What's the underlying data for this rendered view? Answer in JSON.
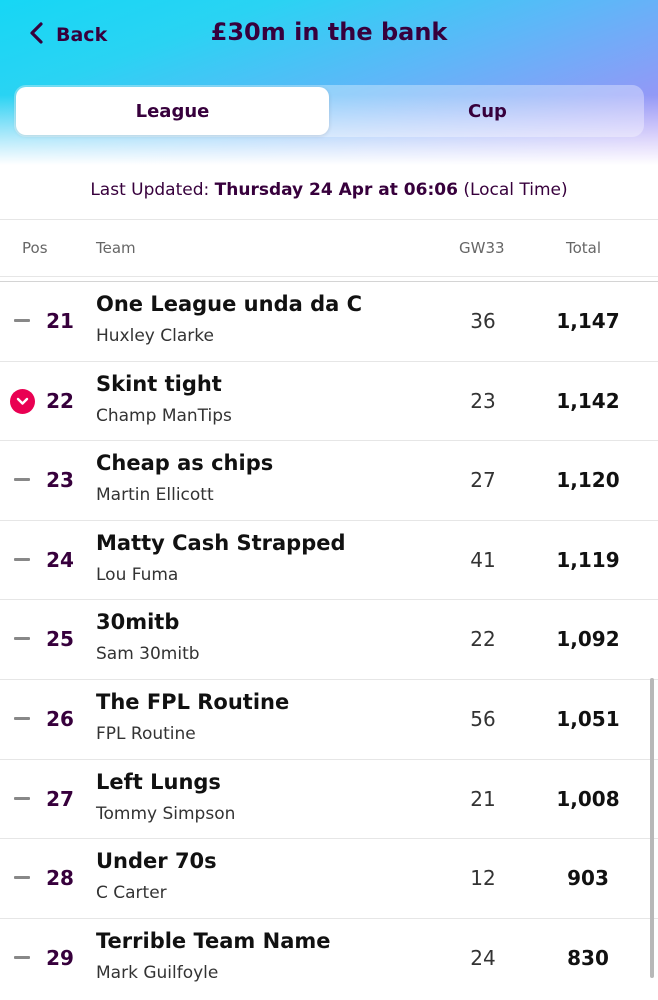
{
  "header": {
    "back_label": "Back",
    "title": "£30m in the bank"
  },
  "tabs": [
    {
      "label": "League",
      "active": true
    },
    {
      "label": "Cup",
      "active": false
    }
  ],
  "updated": {
    "prefix": "Last Updated:",
    "when": "Thursday 24 Apr at 06:06",
    "suffix": "(Local Time)"
  },
  "columns": {
    "pos": "Pos",
    "team": "Team",
    "gw": "GW33",
    "total": "Total"
  },
  "accent_color": "#e90052",
  "brand_color": "#37003c",
  "rows": [
    {
      "movement": "same",
      "pos": "21",
      "team": "One League unda da C",
      "manager": "Huxley Clarke",
      "gw": "36",
      "total": "1,147"
    },
    {
      "movement": "down",
      "pos": "22",
      "team": "Skint tight",
      "manager": "Champ ManTips",
      "gw": "23",
      "total": "1,142"
    },
    {
      "movement": "same",
      "pos": "23",
      "team": "Cheap as chips",
      "manager": "Martin Ellicott",
      "gw": "27",
      "total": "1,120"
    },
    {
      "movement": "same",
      "pos": "24",
      "team": "Matty Cash Strapped",
      "manager": "Lou Fuma",
      "gw": "41",
      "total": "1,119"
    },
    {
      "movement": "same",
      "pos": "25",
      "team": "30mitb",
      "manager": "Sam 30mitb",
      "gw": "22",
      "total": "1,092"
    },
    {
      "movement": "same",
      "pos": "26",
      "team": "The FPL Routine",
      "manager": "FPL Routine",
      "gw": "56",
      "total": "1,051"
    },
    {
      "movement": "same",
      "pos": "27",
      "team": "Left Lungs",
      "manager": "Tommy Simpson",
      "gw": "21",
      "total": "1,008"
    },
    {
      "movement": "same",
      "pos": "28",
      "team": "Under 70s",
      "manager": "C Carter",
      "gw": "12",
      "total": "903"
    },
    {
      "movement": "same",
      "pos": "29",
      "team": "Terrible Team Name",
      "manager": "Mark Guilfoyle",
      "gw": "24",
      "total": "830"
    }
  ]
}
